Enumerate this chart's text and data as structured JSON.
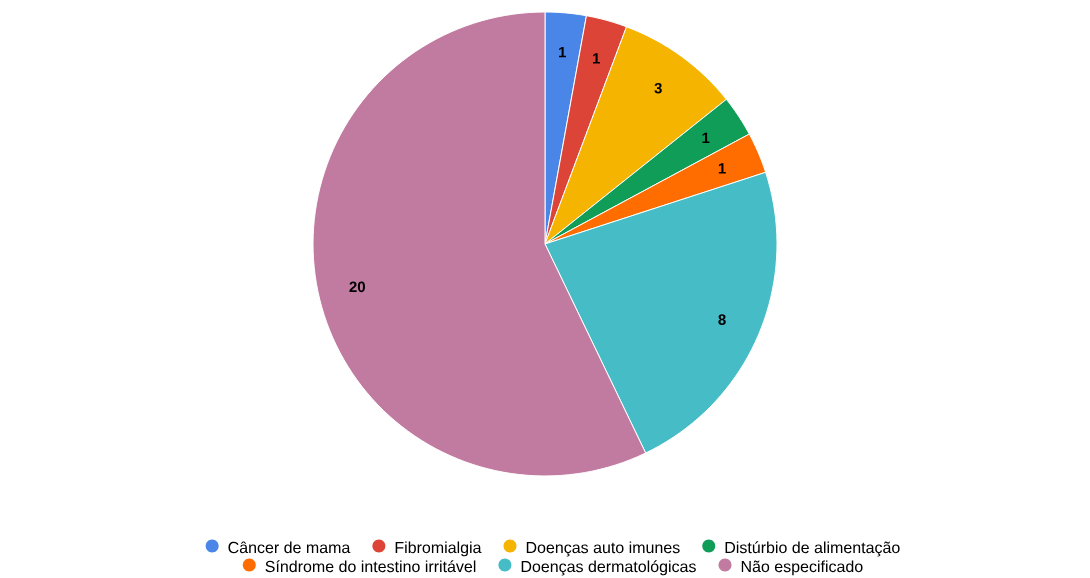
{
  "chart_data": {
    "type": "pie",
    "categories": [
      "Câncer de mama",
      "Fibromialgia",
      "Doenças auto imunes",
      "Distúrbio de alimentação",
      "Síndrome do intestino irritável",
      "Doenças dermatológicas",
      "Não especificado"
    ],
    "values": [
      1,
      1,
      3,
      1,
      1,
      8,
      20
    ],
    "colors": [
      "#4a86e8",
      "#db4437",
      "#f4b400",
      "#0f9d58",
      "#ff6d01",
      "#46bdc6",
      "#c27ba0"
    ],
    "data_labels": true,
    "legend": "bottom"
  }
}
